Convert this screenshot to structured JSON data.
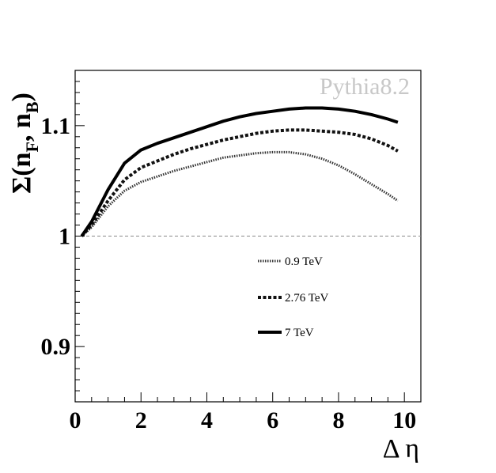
{
  "chart_data": {
    "type": "line",
    "annotation": "Pythia8.2",
    "xlabel": "Δ η",
    "ylabel": {
      "base": "Σ(n",
      "sub1": "F",
      "mid": ", n",
      "sub2": "B",
      "end": ")"
    },
    "xlim": [
      0,
      10.5
    ],
    "ylim": [
      0.85,
      1.15
    ],
    "xticks": [
      "0",
      "2",
      "4",
      "6",
      "8",
      "10"
    ],
    "xtick_values": [
      0,
      2,
      4,
      6,
      8,
      10
    ],
    "yticks": [
      "0.9",
      "1",
      "1.1"
    ],
    "ytick_values": [
      0.9,
      1.0,
      1.1
    ],
    "reference_line": 1.0,
    "grid": false,
    "legend_position": "center-right",
    "series": [
      {
        "name": "0.9 TeV",
        "style": "dotted",
        "x": [
          0.2,
          0.5,
          1.0,
          1.5,
          2.0,
          2.5,
          3.0,
          3.5,
          4.0,
          4.5,
          5.0,
          5.5,
          6.0,
          6.5,
          7.0,
          7.5,
          8.0,
          8.5,
          9.0,
          9.5,
          9.8
        ],
        "y": [
          1.0,
          1.008,
          1.027,
          1.041,
          1.049,
          1.054,
          1.059,
          1.063,
          1.067,
          1.071,
          1.073,
          1.075,
          1.076,
          1.076,
          1.074,
          1.07,
          1.064,
          1.056,
          1.047,
          1.038,
          1.032
        ]
      },
      {
        "name": "2.76 TeV",
        "style": "dashed",
        "x": [
          0.2,
          0.5,
          1.0,
          1.5,
          2.0,
          2.5,
          3.0,
          3.5,
          4.0,
          4.5,
          5.0,
          5.5,
          6.0,
          6.5,
          7.0,
          7.5,
          8.0,
          8.5,
          9.0,
          9.5,
          9.8
        ],
        "y": [
          1.0,
          1.01,
          1.032,
          1.051,
          1.062,
          1.068,
          1.074,
          1.079,
          1.083,
          1.087,
          1.09,
          1.093,
          1.095,
          1.096,
          1.096,
          1.095,
          1.094,
          1.092,
          1.088,
          1.082,
          1.077
        ]
      },
      {
        "name": "7 TeV",
        "style": "solid",
        "x": [
          0.2,
          0.5,
          1.0,
          1.5,
          2.0,
          2.5,
          3.0,
          3.5,
          4.0,
          4.5,
          5.0,
          5.5,
          6.0,
          6.5,
          7.0,
          7.5,
          8.0,
          8.5,
          9.0,
          9.5,
          9.8
        ],
        "y": [
          1.0,
          1.013,
          1.042,
          1.066,
          1.078,
          1.084,
          1.089,
          1.094,
          1.099,
          1.104,
          1.108,
          1.111,
          1.113,
          1.115,
          1.116,
          1.116,
          1.115,
          1.113,
          1.11,
          1.106,
          1.103
        ]
      }
    ]
  }
}
